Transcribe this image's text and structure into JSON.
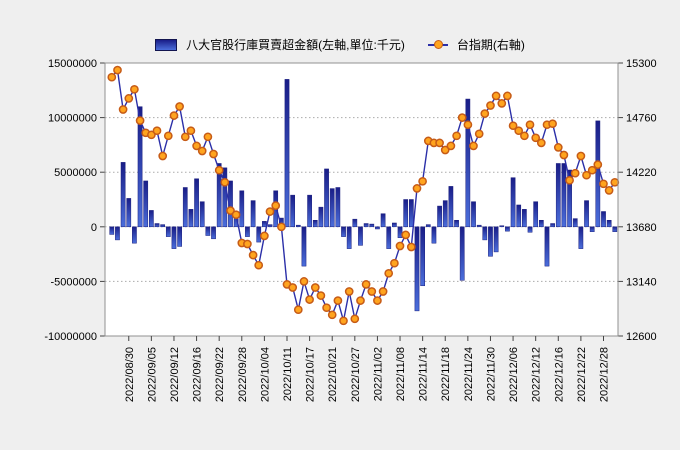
{
  "legend": {
    "bars_label": "八大官股行庫買賣超金額(左軸,單位:千元)",
    "line_label": "台指期(右軸)"
  },
  "colors": {
    "background": "#efefef",
    "plot_background": "#ffffff",
    "plot_border": "#919191",
    "grid": "#ababab",
    "tick": "#444444",
    "bar_gradient_top": "#191d87",
    "bar_gradient_bottom": "#4b6edb",
    "bar_border": "#1b1f7e",
    "line": "#2b2fa8",
    "marker_fill": "#ffa41e",
    "marker_stroke": "#c65b17"
  },
  "chart_data": {
    "type": [
      "bar",
      "line"
    ],
    "title": "",
    "left_axis": {
      "tick_labels": [
        "15000000",
        "10000000",
        "5000000",
        "0",
        "-5000000",
        "-10000000"
      ],
      "min": -10000000,
      "max": 15000000
    },
    "right_axis": {
      "tick_labels": [
        "15300",
        "14760",
        "14220",
        "13680",
        "13140",
        "12600"
      ],
      "min": 12600,
      "max": 15300
    },
    "x_tick_labels": [
      "2022/08/30",
      "2022/09/05",
      "2022/09/12",
      "2022/09/16",
      "2022/09/22",
      "2022/09/28",
      "2022/10/04",
      "2022/10/11",
      "2022/10/17",
      "2022/10/21",
      "2022/10/27",
      "2022/11/02",
      "2022/11/08",
      "2022/11/14",
      "2022/11/18",
      "2022/11/24",
      "2022/11/30",
      "2022/12/06",
      "2022/12/12",
      "2022/12/16",
      "2022/12/22",
      "2022/12/28"
    ],
    "categories": [
      "2022/08/25",
      "2022/08/26",
      "2022/08/29",
      "2022/08/30",
      "2022/08/31",
      "2022/09/01",
      "2022/09/02",
      "2022/09/05",
      "2022/09/06",
      "2022/09/07",
      "2022/09/08",
      "2022/09/12",
      "2022/09/13",
      "2022/09/14",
      "2022/09/15",
      "2022/09/16",
      "2022/09/19",
      "2022/09/20",
      "2022/09/21",
      "2022/09/22",
      "2022/09/23",
      "2022/09/26",
      "2022/09/27",
      "2022/09/28",
      "2022/09/29",
      "2022/09/30",
      "2022/10/03",
      "2022/10/04",
      "2022/10/05",
      "2022/10/06",
      "2022/10/07",
      "2022/10/11",
      "2022/10/12",
      "2022/10/13",
      "2022/10/14",
      "2022/10/17",
      "2022/10/18",
      "2022/10/19",
      "2022/10/20",
      "2022/10/21",
      "2022/10/24",
      "2022/10/25",
      "2022/10/26",
      "2022/10/27",
      "2022/10/28",
      "2022/10/31",
      "2022/11/01",
      "2022/11/02",
      "2022/11/03",
      "2022/11/04",
      "2022/11/07",
      "2022/11/08",
      "2022/11/09",
      "2022/11/10",
      "2022/11/11",
      "2022/11/14",
      "2022/11/15",
      "2022/11/16",
      "2022/11/17",
      "2022/11/18",
      "2022/11/21",
      "2022/11/22",
      "2022/11/23",
      "2022/11/24",
      "2022/11/25",
      "2022/11/28",
      "2022/11/29",
      "2022/11/30",
      "2022/12/01",
      "2022/12/02",
      "2022/12/05",
      "2022/12/06",
      "2022/12/07",
      "2022/12/08",
      "2022/12/09",
      "2022/12/12",
      "2022/12/13",
      "2022/12/14",
      "2022/12/15",
      "2022/12/16",
      "2022/12/19",
      "2022/12/20",
      "2022/12/21",
      "2022/12/22",
      "2022/12/23",
      "2022/12/26",
      "2022/12/27",
      "2022/12/28",
      "2022/12/29",
      "2022/12/30"
    ],
    "series": [
      {
        "name": "八大官股行庫買賣超金額",
        "type": "bar",
        "axis": "left",
        "unit": "千元",
        "values": [
          -700000,
          -1200000,
          5900000,
          2600000,
          -1500000,
          11000000,
          4200000,
          1500000,
          300000,
          200000,
          -900000,
          -2000000,
          -1800000,
          3600000,
          1600000,
          4400000,
          2300000,
          -800000,
          -1100000,
          5800000,
          5400000,
          4200000,
          1400000,
          3300000,
          -900000,
          2400000,
          -1400000,
          500000,
          200000,
          3300000,
          800000,
          13500000,
          2900000,
          150000,
          -3600000,
          2900000,
          600000,
          1800000,
          5300000,
          3500000,
          3600000,
          -900000,
          -2000000,
          700000,
          -1700000,
          300000,
          250000,
          -200000,
          1200000,
          -2000000,
          350000,
          -1000000,
          2500000,
          2500000,
          -7700000,
          -5400000,
          200000,
          -1500000,
          1900000,
          2400000,
          3700000,
          600000,
          -4900000,
          11700000,
          2300000,
          150000,
          -1200000,
          -2700000,
          -2300000,
          100000,
          -400000,
          4500000,
          2000000,
          1600000,
          -500000,
          2300000,
          600000,
          -3600000,
          300000,
          5800000,
          5800000,
          5200000,
          750000,
          -2000000,
          2400000,
          -450000,
          9700000,
          1400000,
          600000,
          -450000
        ]
      },
      {
        "name": "台指期",
        "type": "line",
        "axis": "right",
        "values": [
          15160,
          15230,
          14840,
          14950,
          15040,
          14730,
          14610,
          14590,
          14630,
          14380,
          14580,
          14780,
          14870,
          14570,
          14630,
          14480,
          14430,
          14570,
          14400,
          14240,
          14120,
          13840,
          13800,
          13520,
          13510,
          13400,
          13300,
          13590,
          13830,
          13890,
          13680,
          13110,
          13080,
          12860,
          13140,
          12960,
          13080,
          13000,
          12880,
          12810,
          12950,
          12750,
          13040,
          12770,
          12950,
          13110,
          13040,
          12950,
          13040,
          13220,
          13320,
          13490,
          13600,
          13480,
          14060,
          14130,
          14530,
          14510,
          14510,
          14440,
          14480,
          14580,
          14760,
          14690,
          14480,
          14600,
          14800,
          14880,
          14975,
          14900,
          14975,
          14680,
          14630,
          14580,
          14690,
          14560,
          14510,
          14690,
          14700,
          14465,
          14390,
          14140,
          14210,
          14380,
          14190,
          14240,
          14295,
          14105,
          14040,
          14120
        ]
      }
    ],
    "grid": "dotted horizontal",
    "legend_position": "top-center"
  }
}
